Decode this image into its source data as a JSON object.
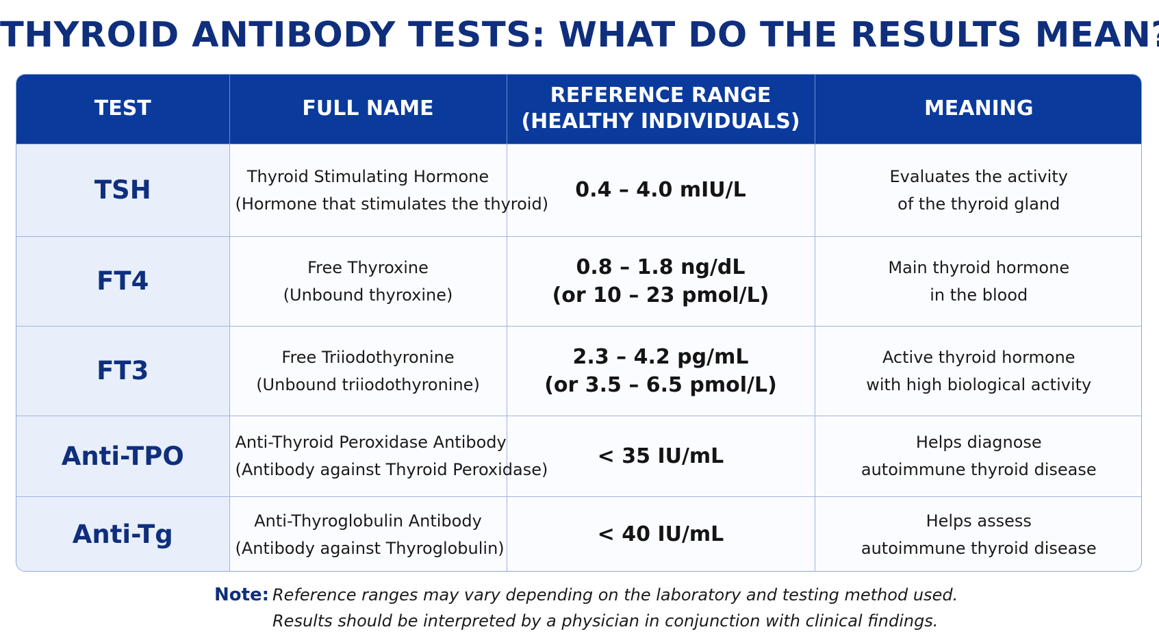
{
  "title": "THYROID ANTIBODY TESTS: WHAT DO THE RESULTS MEAN?",
  "colors": {
    "title": "#0f2f7d",
    "header_bg": "#0a3a9c",
    "test_col_bg": "#e8effb",
    "border": "#9fb3df"
  },
  "table": {
    "headers": {
      "test": "TEST",
      "full_name": "FULL NAME",
      "range_line1": "REFERENCE RANGE",
      "range_line2": "(HEALTHY INDIVIDUALS)",
      "meaning": "MEANING"
    },
    "rows": [
      {
        "test": "TSH",
        "full_name": [
          "Thyroid Stimulating Hormone",
          "(Hormone that stimulates the thyroid)"
        ],
        "range": [
          "0.4 – 4.0 mIU/L",
          ""
        ],
        "meaning": [
          "Evaluates the activity",
          "of the thyroid gland"
        ]
      },
      {
        "test": "FT4",
        "full_name": [
          "Free Thyroxine",
          "(Unbound thyroxine)"
        ],
        "range": [
          "0.8 – 1.8 ng/dL",
          "(or 10 – 23 pmol/L)"
        ],
        "meaning": [
          "Main thyroid hormone",
          "in the blood"
        ]
      },
      {
        "test": "FT3",
        "full_name": [
          "Free Triiodothyronine",
          "(Unbound triiodothyronine)"
        ],
        "range": [
          "2.3 – 4.2 pg/mL",
          "(or 3.5 – 6.5 pmol/L)"
        ],
        "meaning": [
          "Active thyroid hormone",
          "with high biological activity"
        ]
      },
      {
        "test": "Anti-TPO",
        "full_name": [
          "Anti-Thyroid Peroxidase Antibody",
          "(Antibody against Thyroid Peroxidase)"
        ],
        "range": [
          "< 35 IU/mL",
          ""
        ],
        "meaning": [
          "Helps diagnose",
          "autoimmune thyroid disease"
        ]
      },
      {
        "test": "Anti-Tg",
        "full_name": [
          "Anti-Thyroglobulin Antibody",
          "(Antibody against Thyroglobulin)"
        ],
        "range": [
          "< 40 IU/mL",
          ""
        ],
        "meaning": [
          "Helps assess",
          "autoimmune thyroid disease"
        ]
      }
    ]
  },
  "note": {
    "label": "Note:",
    "line1": "Reference ranges may vary depending on the laboratory and testing method used.",
    "line2": "Results should be interpreted by a physician in conjunction with clinical findings."
  }
}
